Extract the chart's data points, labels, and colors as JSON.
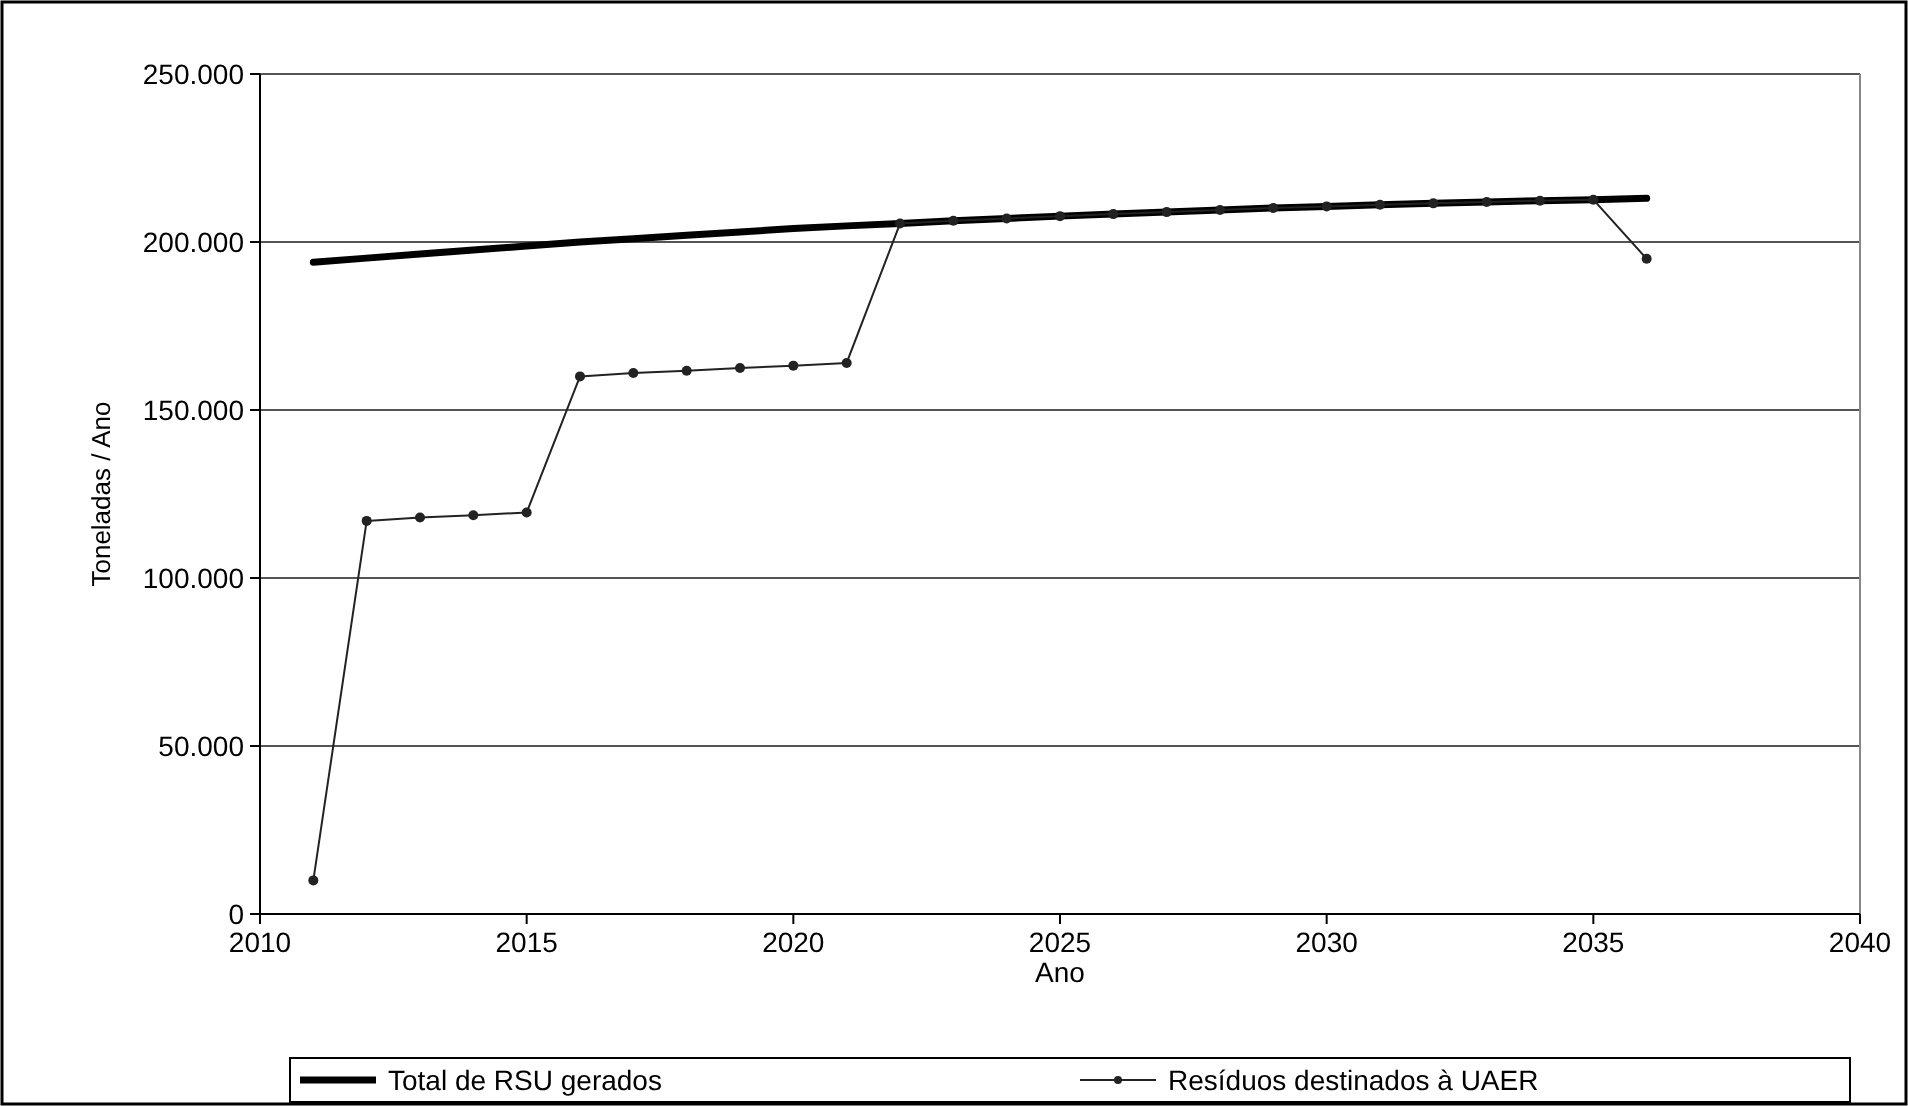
{
  "chart_data": {
    "type": "line",
    "xlabel": "Ano",
    "ylabel": "Toneladas / Ano",
    "x": [
      2011,
      2012,
      2013,
      2014,
      2015,
      2016,
      2017,
      2018,
      2019,
      2020,
      2021,
      2022,
      2023,
      2024,
      2025,
      2026,
      2027,
      2028,
      2029,
      2030,
      2031,
      2032,
      2033,
      2034,
      2035,
      2036
    ],
    "series": [
      {
        "name": "Total de RSU gerados",
        "color": "#000000",
        "marker": "none",
        "values": [
          194000,
          195200,
          196400,
          197600,
          198800,
          200000,
          201000,
          202000,
          203000,
          204000,
          204800,
          205500,
          206300,
          207000,
          207700,
          208300,
          208900,
          209500,
          210100,
          210600,
          211100,
          211500,
          211900,
          212300,
          212600,
          213000
        ]
      },
      {
        "name": "Resíduos destinados à UAER",
        "color": "#222222",
        "marker": "circle",
        "values": [
          10000,
          117000,
          118000,
          118700,
          119500,
          160000,
          161000,
          161700,
          162500,
          163200,
          164000,
          205500,
          206300,
          207000,
          207700,
          208300,
          208900,
          209500,
          210100,
          210600,
          211100,
          211500,
          211900,
          212300,
          212600,
          195000
        ]
      }
    ],
    "xlim": [
      2010,
      2040
    ],
    "xticks": [
      2010,
      2015,
      2020,
      2025,
      2030,
      2035,
      2040
    ],
    "ylim": [
      0,
      250000
    ],
    "yticks": [
      0,
      {
        "value": 50000,
        "label": "50.000"
      },
      {
        "value": 100000,
        "label": "100.000"
      },
      {
        "value": 150000,
        "label": "150.000"
      },
      {
        "value": 200000,
        "label": "200.000"
      },
      {
        "value": 250000,
        "label": "250.000"
      }
    ],
    "grid": "y",
    "legend": "bottom",
    "line_style": "solid"
  }
}
